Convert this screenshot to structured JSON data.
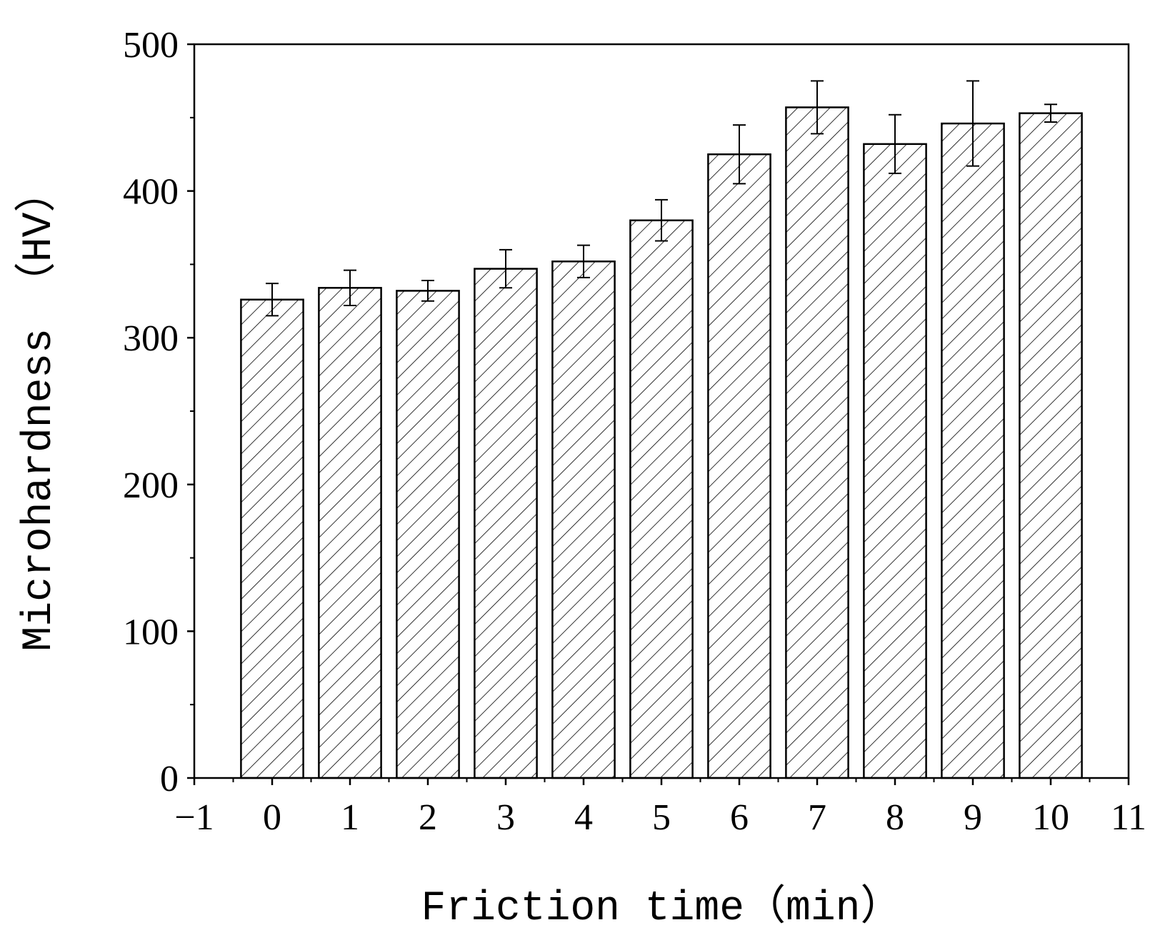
{
  "chart_data": {
    "type": "bar",
    "title": "",
    "xlabel": "Friction time（min）",
    "ylabel": "Microhardness （HV）",
    "x": [
      0,
      1,
      2,
      3,
      4,
      5,
      6,
      7,
      8,
      9,
      10
    ],
    "values": [
      326,
      334,
      332,
      347,
      352,
      380,
      425,
      457,
      432,
      446,
      453
    ],
    "error": [
      11,
      12,
      7,
      13,
      11,
      14,
      20,
      18,
      20,
      29,
      6
    ],
    "xlim": [
      -1,
      11
    ],
    "ylim": [
      0,
      500
    ],
    "xticks": [
      -1,
      0,
      1,
      2,
      3,
      4,
      5,
      6,
      7,
      8,
      9,
      10,
      11
    ],
    "yticks": [
      0,
      100,
      200,
      300,
      400,
      500
    ],
    "bar_fill": "hatched",
    "grid": false,
    "legend": "none",
    "colors": {
      "bar_edge": "#000000",
      "hatch": "#000000",
      "background": "#ffffff"
    }
  }
}
